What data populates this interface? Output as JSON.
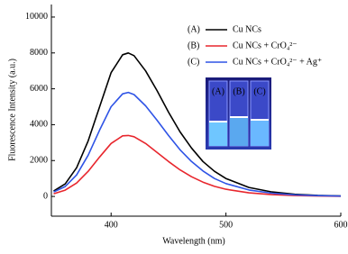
{
  "chart_data": {
    "type": "line",
    "xlabel": "Wavelength (nm)",
    "ylabel": "Fluorescence Intensity (a.u.)",
    "x": [
      350,
      360,
      370,
      380,
      390,
      400,
      410,
      415,
      420,
      430,
      440,
      450,
      460,
      470,
      480,
      490,
      500,
      520,
      540,
      560,
      580,
      600
    ],
    "series": [
      {
        "label": "(A)",
        "name": "Cu NCs",
        "color": "#000000",
        "values": [
          300,
          700,
          1600,
          3100,
          5000,
          6900,
          7900,
          8000,
          7850,
          7000,
          5900,
          4700,
          3600,
          2700,
          1950,
          1400,
          1000,
          500,
          250,
          120,
          60,
          30
        ]
      },
      {
        "label": "(B)",
        "name": "Cu NCs + CrO₄²⁻",
        "color": "#e8262d",
        "values": [
          150,
          350,
          750,
          1400,
          2200,
          2950,
          3380,
          3400,
          3330,
          2950,
          2450,
          1950,
          1480,
          1100,
          800,
          560,
          400,
          200,
          100,
          50,
          25,
          10
        ]
      },
      {
        "label": "(C)",
        "name": "Cu NCs + CrO₄²⁻ + Ag⁺",
        "color": "#2f54e6",
        "values": [
          250,
          550,
          1200,
          2300,
          3700,
          5000,
          5720,
          5800,
          5680,
          5050,
          4250,
          3400,
          2600,
          1950,
          1420,
          1000,
          720,
          360,
          180,
          90,
          45,
          20
        ]
      }
    ],
    "xlim": [
      348,
      600
    ],
    "xticks": [
      400,
      500,
      600
    ],
    "ylim": [
      -1100,
      10700
    ],
    "yticks": [
      0,
      2000,
      4000,
      6000,
      8000,
      10000
    ],
    "inset_labels": [
      "(A)",
      "(B)",
      "(C)"
    ]
  }
}
